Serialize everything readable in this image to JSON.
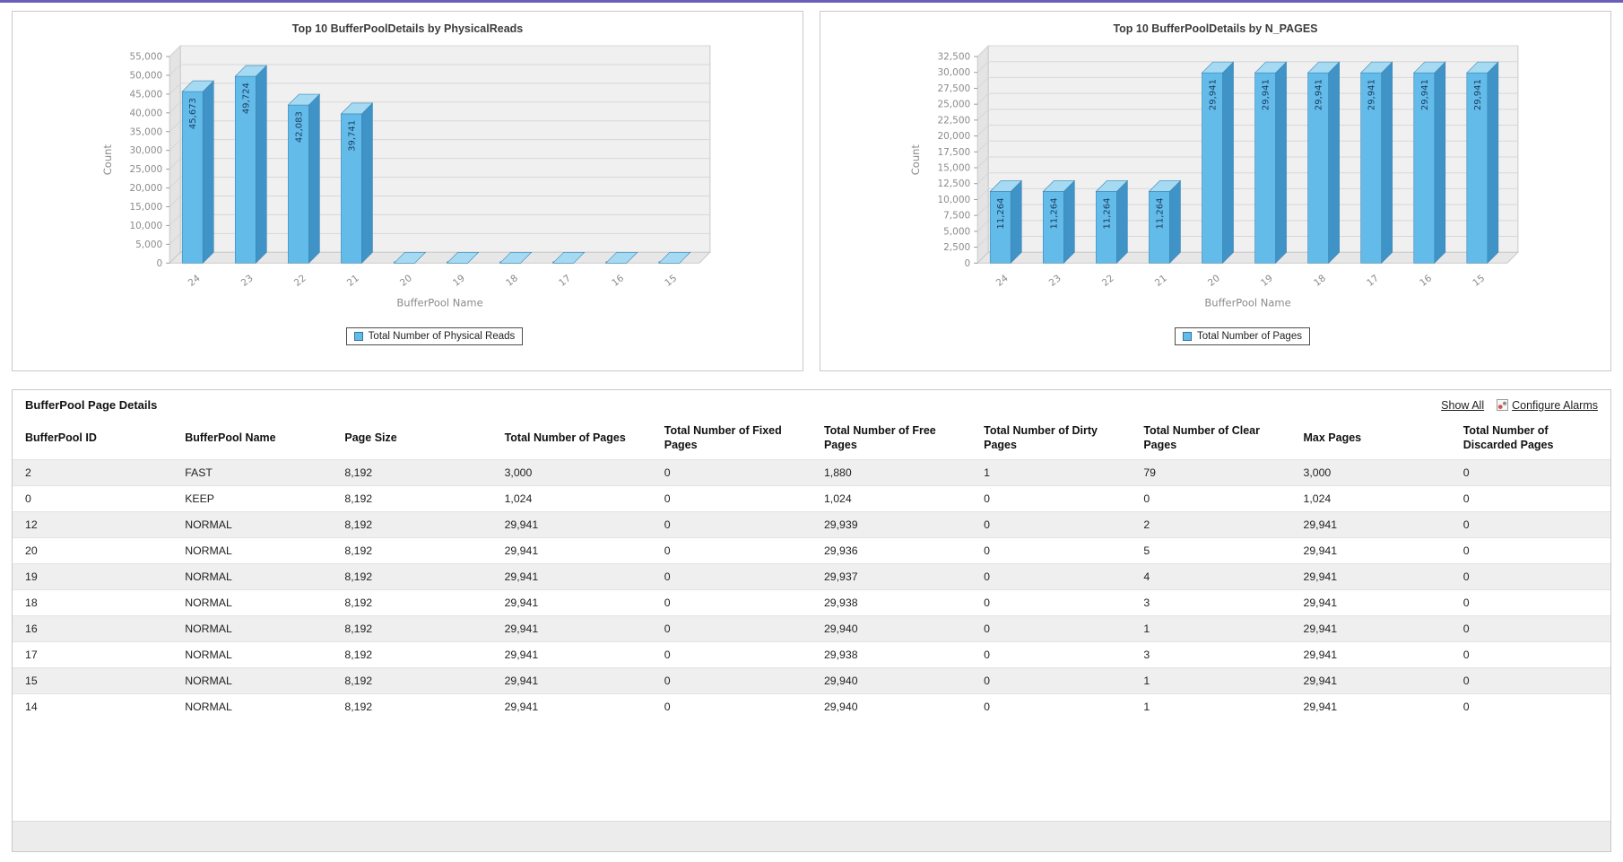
{
  "colors": {
    "accent_top": "#6a5fb8",
    "bar_front": "#63bbe9",
    "bar_top": "#a6daf3",
    "bar_side": "#3f93c6"
  },
  "chart_data": [
    {
      "type": "bar",
      "title": "Top 10 BufferPoolDetails by PhysicalReads",
      "categories": [
        "24",
        "23",
        "22",
        "21",
        "20",
        "19",
        "18",
        "17",
        "16",
        "15"
      ],
      "values": [
        45673,
        49724,
        42083,
        39741,
        0,
        0,
        0,
        0,
        0,
        0
      ],
      "xlabel": "BufferPool Name",
      "ylabel": "Count",
      "ylim": [
        0,
        55000
      ],
      "ytick_step": 5000,
      "grid": true,
      "legend_position": "bottom",
      "legend": [
        "Total Number of Physical Reads"
      ],
      "bar_color": "#63bbe9"
    },
    {
      "type": "bar",
      "title": "Top 10 BufferPoolDetails by N_PAGES",
      "categories": [
        "24",
        "23",
        "22",
        "21",
        "20",
        "19",
        "18",
        "17",
        "16",
        "15"
      ],
      "values": [
        11264,
        11264,
        11264,
        11264,
        29941,
        29941,
        29941,
        29941,
        29941,
        29941
      ],
      "xlabel": "BufferPool Name",
      "ylabel": "Count",
      "ylim": [
        0,
        32500
      ],
      "ytick_step": 2500,
      "grid": true,
      "legend_position": "bottom",
      "legend": [
        "Total Number of Pages"
      ],
      "bar_color": "#63bbe9"
    }
  ],
  "table_panel": {
    "title": "BufferPool Page Details",
    "show_all_label": "Show All",
    "configure_alarms_label": "Configure Alarms",
    "columns": [
      "BufferPool ID",
      "BufferPool Name",
      "Page Size",
      "Total Number of Pages",
      "Total Number of Fixed Pages",
      "Total Number of Free Pages",
      "Total Number of Dirty Pages",
      "Total Number of Clear Pages",
      "Max Pages",
      "Total Number of Discarded Pages"
    ],
    "rows": [
      [
        "2",
        "FAST",
        "8,192",
        "3,000",
        "0",
        "1,880",
        "1",
        "79",
        "3,000",
        "0"
      ],
      [
        "0",
        "KEEP",
        "8,192",
        "1,024",
        "0",
        "1,024",
        "0",
        "0",
        "1,024",
        "0"
      ],
      [
        "12",
        "NORMAL",
        "8,192",
        "29,941",
        "0",
        "29,939",
        "0",
        "2",
        "29,941",
        "0"
      ],
      [
        "20",
        "NORMAL",
        "8,192",
        "29,941",
        "0",
        "29,936",
        "0",
        "5",
        "29,941",
        "0"
      ],
      [
        "19",
        "NORMAL",
        "8,192",
        "29,941",
        "0",
        "29,937",
        "0",
        "4",
        "29,941",
        "0"
      ],
      [
        "18",
        "NORMAL",
        "8,192",
        "29,941",
        "0",
        "29,938",
        "0",
        "3",
        "29,941",
        "0"
      ],
      [
        "16",
        "NORMAL",
        "8,192",
        "29,941",
        "0",
        "29,940",
        "0",
        "1",
        "29,941",
        "0"
      ],
      [
        "17",
        "NORMAL",
        "8,192",
        "29,941",
        "0",
        "29,938",
        "0",
        "3",
        "29,941",
        "0"
      ],
      [
        "15",
        "NORMAL",
        "8,192",
        "29,941",
        "0",
        "29,940",
        "0",
        "1",
        "29,941",
        "0"
      ],
      [
        "14",
        "NORMAL",
        "8,192",
        "29,941",
        "0",
        "29,940",
        "0",
        "1",
        "29,941",
        "0"
      ]
    ]
  }
}
